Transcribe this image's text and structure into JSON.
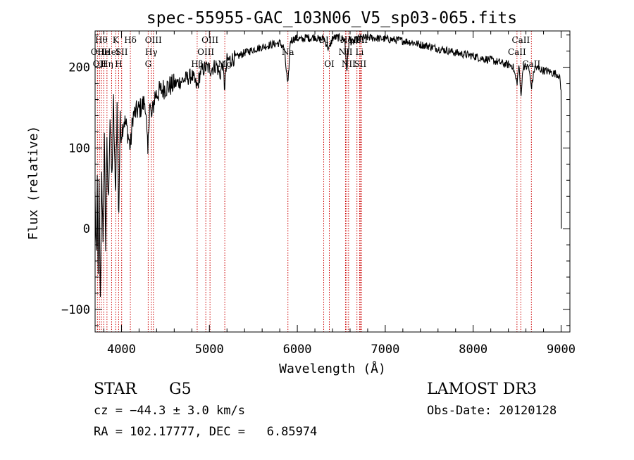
{
  "chart_data": {
    "type": "line",
    "title": "spec-55955-GAC_103N06_V5_sp03-065.fits",
    "xlabel": "Wavelength (Å)",
    "ylabel": "Flux (relative)",
    "xlim": [
      3700,
      9100
    ],
    "ylim": [
      -128,
      245
    ],
    "xticks": [
      4000,
      5000,
      6000,
      7000,
      8000,
      9000
    ],
    "xtick_labels": [
      "4000",
      "5000",
      "6000",
      "7000",
      "8000",
      "9000"
    ],
    "yticks": [
      -100,
      0,
      100,
      200
    ],
    "ytick_labels": [
      "−100",
      "0",
      "100",
      "200"
    ],
    "series": [
      {
        "name": "flux",
        "color": "#000000",
        "x": [
          3700,
          3715,
          3725,
          3735,
          3745,
          3760,
          3775,
          3790,
          3805,
          3820,
          3835,
          3850,
          3870,
          3890,
          3910,
          3930,
          3950,
          3968,
          3985,
          4000,
          4030,
          4060,
          4101,
          4130,
          4170,
          4220,
          4270,
          4300,
          4320,
          4340,
          4380,
          4430,
          4500,
          4580,
          4660,
          4740,
          4800,
          4861,
          4900,
          4960,
          5020,
          5080,
          5120,
          5150,
          5172,
          5200,
          5300,
          5400,
          5500,
          5600,
          5700,
          5800,
          5850,
          5893,
          5920,
          5960,
          6000,
          6050,
          6100,
          6150,
          6200,
          6250,
          6300,
          6360,
          6400,
          6450,
          6500,
          6540,
          6563,
          6590,
          6620,
          6700,
          6800,
          6900,
          7000,
          7100,
          7200,
          7300,
          7400,
          7500,
          7600,
          7700,
          7800,
          7900,
          8000,
          8100,
          8200,
          8300,
          8400,
          8450,
          8498,
          8520,
          8542,
          8570,
          8600,
          8630,
          8662,
          8700,
          8750,
          8800,
          8850,
          8900,
          8940,
          8980,
          9000,
          9003
        ],
        "y": [
          40,
          -45,
          60,
          -70,
          50,
          -95,
          80,
          -30,
          120,
          -20,
          100,
          30,
          140,
          60,
          155,
          40,
          150,
          10,
          130,
          120,
          135,
          125,
          100,
          140,
          145,
          150,
          158,
          90,
          160,
          135,
          165,
          170,
          175,
          178,
          182,
          186,
          190,
          175,
          195,
          200,
          198,
          203,
          190,
          205,
          175,
          208,
          212,
          218,
          222,
          225,
          228,
          230,
          224,
          175,
          233,
          235,
          236,
          234,
          237,
          236,
          238,
          234,
          236,
          222,
          236,
          237,
          236,
          234,
          195,
          236,
          230,
          236,
          237,
          236,
          235,
          234,
          233,
          231,
          228,
          226,
          223,
          221,
          218,
          216,
          214,
          211,
          209,
          206,
          203,
          202,
          180,
          203,
          165,
          202,
          200,
          201,
          175,
          200,
          198,
          196,
          195,
          193,
          192,
          190,
          170,
          0
        ]
      }
    ],
    "spectral_lines": [
      {
        "wavelength": 3727,
        "label": "OII",
        "row": 1
      },
      {
        "wavelength": 3750,
        "label": "OII",
        "row": 2
      },
      {
        "wavelength": 3771,
        "label": "Hθ",
        "row": 0
      },
      {
        "wavelength": 3798,
        "label": "He",
        "row": 1
      },
      {
        "wavelength": 3835,
        "label": "Hη",
        "row": 2
      },
      {
        "wavelength": 3888,
        "label": "HeI",
        "row": 1
      },
      {
        "wavelength": 3934,
        "label": "K",
        "row": 0
      },
      {
        "wavelength": 3968,
        "label": "H",
        "row": 2
      },
      {
        "wavelength": 4002,
        "label": "SII",
        "row": 1
      },
      {
        "wavelength": 4101,
        "label": "Hδ",
        "row": 0
      },
      {
        "wavelength": 4304,
        "label": "G",
        "row": 2
      },
      {
        "wavelength": 4340,
        "label": "Hγ",
        "row": 1
      },
      {
        "wavelength": 4363,
        "label": "OIII",
        "row": 0
      },
      {
        "wavelength": 4861,
        "label": "Hβ",
        "row": 2
      },
      {
        "wavelength": 4959,
        "label": "OIII",
        "row": 1
      },
      {
        "wavelength": 5007,
        "label": "OIII",
        "row": 0
      },
      {
        "wavelength": 5175,
        "label": "Mg",
        "row": 2
      },
      {
        "wavelength": 5893,
        "label": "Na",
        "row": 1
      },
      {
        "wavelength": 6300,
        "label": "OI",
        "row": 0
      },
      {
        "wavelength": 6364,
        "label": "OI",
        "row": 2
      },
      {
        "wavelength": 6548,
        "label": "NII",
        "row": 1
      },
      {
        "wavelength": 6563,
        "label": "Hα",
        "row": 0
      },
      {
        "wavelength": 6583,
        "label": "NII",
        "row": 2
      },
      {
        "wavelength": 6678,
        "label": "HeI",
        "row": 0
      },
      {
        "wavelength": 6708,
        "label": "Li",
        "row": 1
      },
      {
        "wavelength": 6716,
        "label": "SII",
        "row": 2
      },
      {
        "wavelength": 6731,
        "label": "SII",
        "row": 0
      },
      {
        "wavelength": 8498,
        "label": "CaII",
        "row": 1
      },
      {
        "wavelength": 8542,
        "label": "CaII",
        "row": 0
      },
      {
        "wavelength": 8662,
        "label": "CaII",
        "row": 2
      }
    ],
    "colors": {
      "spectrum": "#000000",
      "marker_lines": "#cc0000",
      "axes": "#000000"
    }
  },
  "info": {
    "object_class": "STAR",
    "subclass": "G5",
    "survey": "LAMOST DR3",
    "redshift_line": "cz = −44.3 ± 3.0 km/s",
    "obs_date": "Obs-Date: 20120128",
    "coords": "RA = 102.17777, DEC =   6.85974"
  }
}
